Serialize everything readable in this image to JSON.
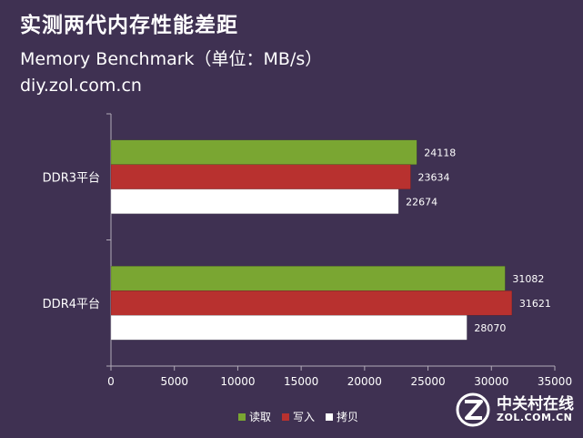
{
  "header": {
    "title": "实测两代内存性能差距",
    "subtitle": "Memory Benchmark（单位：MB/s）",
    "source": "diy.zol.com.cn"
  },
  "watermark": {
    "name_cn": "中关村在线",
    "name_en": "ZOL.COM.CN"
  },
  "chart_data": {
    "type": "bar",
    "orientation": "horizontal",
    "title": "实测两代内存性能差距",
    "subtitle": "Memory Benchmark（单位：MB/s）",
    "categories": [
      "DDR3平台",
      "DDR4平台"
    ],
    "series": [
      {
        "name": "读取",
        "color": "#7aa632",
        "values": [
          24118,
          31082
        ]
      },
      {
        "name": "写入",
        "color": "#b8312f",
        "values": [
          23634,
          31621
        ]
      },
      {
        "name": "拷贝",
        "color": "#ffffff",
        "values": [
          22674,
          28070
        ]
      }
    ],
    "xlim": [
      0,
      35000
    ],
    "xticks": [
      0,
      5000,
      10000,
      15000,
      20000,
      25000,
      30000,
      35000
    ],
    "grid": false,
    "legend": "bottom",
    "data_labels": true
  }
}
